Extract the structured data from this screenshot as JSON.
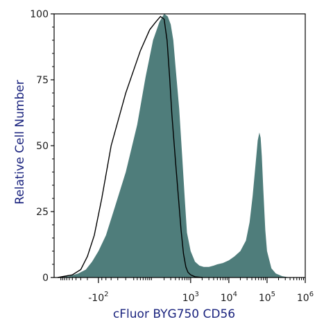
{
  "chart_data": {
    "type": "area",
    "title": "",
    "xlabel": "cFluor BYG750 CD56",
    "ylabel": "Relative Cell Number",
    "x_scale": "biexponential",
    "ylim": [
      0,
      100
    ],
    "y_ticks": [
      0,
      25,
      50,
      75,
      100
    ],
    "y_tick_labels": [
      "0",
      "25",
      "50",
      "75",
      "100"
    ],
    "x_ticks": [
      -100,
      1000,
      10000,
      100000,
      1000000
    ],
    "x_tick_labels": [
      {
        "base": "-10",
        "exp": "2"
      },
      {
        "base": "10",
        "exp": "3"
      },
      {
        "base": "10",
        "exp": "4"
      },
      {
        "base": "10",
        "exp": "5"
      },
      {
        "base": "10",
        "exp": "6"
      }
    ],
    "grid": false,
    "legend": "none",
    "colors": {
      "stained": "#4f7d7b",
      "control_outline": "#000000",
      "axis": "#000000"
    },
    "series": [
      {
        "kind": "filled",
        "x": [
          -1500,
          -600,
          -350,
          -220,
          -150,
          -100,
          -60,
          -30,
          0,
          30,
          60,
          100,
          150,
          200,
          250,
          300,
          350,
          400,
          500,
          600,
          700,
          800,
          1000,
          1300,
          1700,
          2200,
          3000,
          4000,
          5000,
          7000,
          10000,
          14000,
          20000,
          28000,
          35000,
          42000,
          50000,
          57000,
          63000,
          68000,
          73000,
          80000,
          90000,
          100000,
          130000,
          170000,
          250000,
          400000
        ],
        "values": [
          0,
          0.5,
          1.5,
          3,
          6,
          10,
          16,
          26,
          40,
          58,
          76,
          90,
          97,
          100,
          99,
          96,
          90,
          80,
          64,
          46,
          30,
          17,
          10,
          6,
          4.5,
          4,
          4,
          4.5,
          5,
          5.5,
          6.5,
          8,
          10,
          14,
          21,
          31,
          43,
          52,
          55,
          53,
          46,
          33,
          18,
          10,
          3.5,
          1.5,
          0.5,
          0
        ]
      },
      {
        "kind": "outline",
        "x": [
          -1200,
          -500,
          -300,
          -200,
          -130,
          -80,
          -40,
          0,
          40,
          80,
          120,
          160,
          200,
          240,
          280,
          320,
          400,
          480,
          560,
          650,
          750,
          850,
          1000,
          1300,
          2000
        ],
        "values": [
          0,
          1,
          3,
          8,
          16,
          30,
          50,
          70,
          86,
          94,
          97,
          99,
          98,
          90,
          76,
          62,
          44,
          30,
          18,
          9,
          4,
          2,
          1,
          0.3,
          0
        ]
      }
    ]
  }
}
